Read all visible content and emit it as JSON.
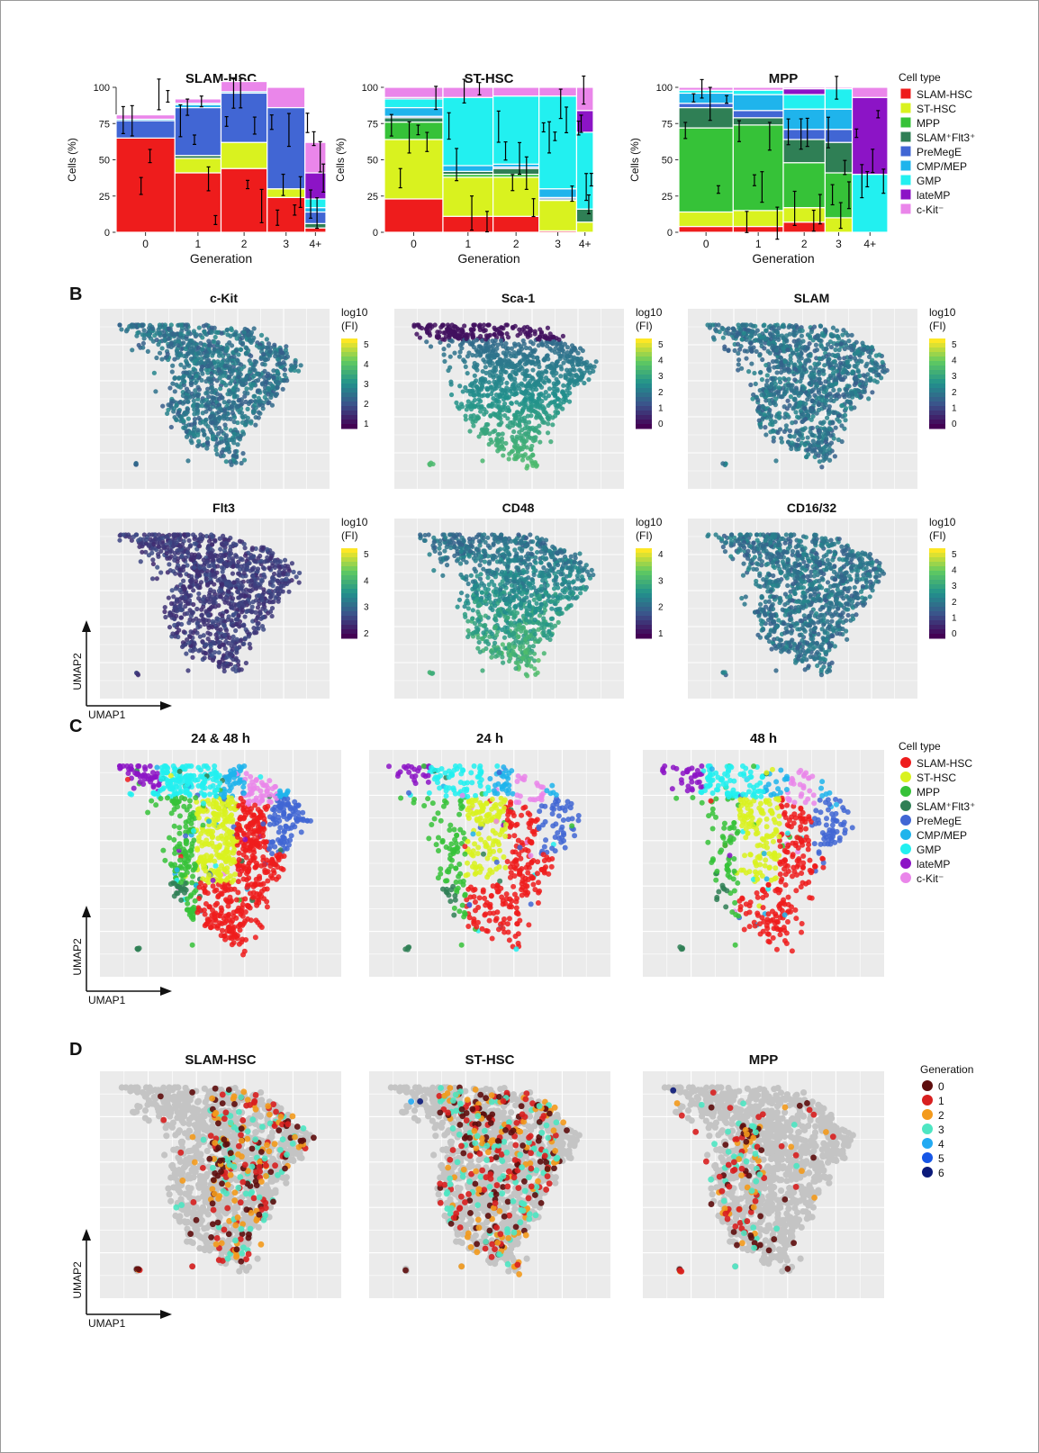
{
  "panel_labels": [
    "B",
    "C",
    "D"
  ],
  "colors": {
    "SLAM-HSC": "#ee1c1c",
    "ST-HSC": "#d9f21f",
    "MPP": "#36c238",
    "SLAM+Flt3+": "#2f7f55",
    "PreMegE": "#4166d4",
    "CMP/MEP": "#1fb4ec",
    "GMP": "#22f0f0",
    "lateMP": "#8c14c6",
    "c-Kit-": "#ea86ea",
    "gen0": "#5e0d0d",
    "gen1": "#d81f1f",
    "gen2": "#f39a1c",
    "gen3": "#4ee6c2",
    "gen4": "#22aaf2",
    "gen5": "#1656e6",
    "gen6": "#0b1a7a",
    "grey": "#c4c4c4",
    "panel_bg": "#ebebeb"
  },
  "legend_celltype": {
    "title": "Cell type",
    "items": [
      "SLAM-HSC",
      "ST-HSC",
      "MPP",
      "SLAM⁺Flt3⁺",
      "PreMegE",
      "CMP/MEP",
      "GMP",
      "lateMP",
      "c-Kit⁻"
    ],
    "keys": [
      "SLAM-HSC",
      "ST-HSC",
      "MPP",
      "SLAM+Flt3+",
      "PreMegE",
      "CMP/MEP",
      "GMP",
      "lateMP",
      "c-Kit-"
    ]
  },
  "legend_generation": {
    "title": "Generation",
    "items": [
      "0",
      "1",
      "2",
      "3",
      "4",
      "5",
      "6"
    ]
  },
  "axes_text": {
    "umap1": "UMAP1",
    "umap2": "UMAP2",
    "log_label_1": "log10",
    "log_label_2": "(FI)"
  },
  "chart_data": [
    {
      "type": "bar",
      "stacked": "mosaic",
      "title": "SLAM-HSC",
      "xlabel": "Generation",
      "ylabel": "Cells (%)",
      "ylim": [
        0,
        100
      ],
      "yticks": [
        "0",
        "25",
        "50",
        "75",
        "100"
      ],
      "categories": [
        "0",
        "1",
        "2",
        "3",
        "4+"
      ],
      "series": [
        {
          "name": "SLAM-HSC",
          "values": [
            65,
            41,
            44,
            24,
            3
          ]
        },
        {
          "name": "ST-HSC",
          "values": [
            0,
            10,
            18,
            6,
            0
          ]
        },
        {
          "name": "MPP",
          "values": [
            0,
            0,
            0,
            0,
            0
          ]
        },
        {
          "name": "SLAM⁺Flt3⁺",
          "values": [
            0,
            2,
            0,
            0,
            3
          ]
        },
        {
          "name": "PreMegE",
          "values": [
            12,
            33,
            34,
            56,
            8
          ]
        },
        {
          "name": "CMP/MEP",
          "values": [
            1,
            2,
            1,
            0,
            3
          ]
        },
        {
          "name": "GMP",
          "values": [
            0,
            1,
            0,
            0,
            6
          ]
        },
        {
          "name": "lateMP",
          "values": [
            0,
            0,
            0,
            0,
            18
          ]
        },
        {
          "name": "c-Kit⁻",
          "values": [
            3,
            3,
            7,
            14,
            21
          ]
        }
      ]
    },
    {
      "type": "bar",
      "stacked": "mosaic",
      "title": "ST-HSC",
      "xlabel": "Generation",
      "ylabel": "Cells (%)",
      "ylim": [
        0,
        100
      ],
      "yticks": [
        "0",
        "25",
        "50",
        "75",
        "100"
      ],
      "categories": [
        "0",
        "1",
        "2",
        "3",
        "4+"
      ],
      "series": [
        {
          "name": "SLAM-HSC",
          "values": [
            23,
            11,
            11,
            1,
            0
          ]
        },
        {
          "name": "ST-HSC",
          "values": [
            41,
            27,
            27,
            21,
            7
          ]
        },
        {
          "name": "MPP",
          "values": [
            12,
            2,
            2,
            0,
            0
          ]
        },
        {
          "name": "SLAM⁺Flt3⁺",
          "values": [
            3,
            2,
            4,
            1,
            9
          ]
        },
        {
          "name": "PreMegE",
          "values": [
            1,
            0,
            1,
            1,
            0
          ]
        },
        {
          "name": "CMP/MEP",
          "values": [
            6,
            4,
            2,
            6,
            0
          ]
        },
        {
          "name": "GMP",
          "values": [
            6,
            47,
            47,
            64,
            53
          ]
        },
        {
          "name": "lateMP",
          "values": [
            1,
            0,
            0,
            0,
            15
          ]
        },
        {
          "name": "c-Kit⁻",
          "values": [
            7,
            7,
            6,
            6,
            16
          ]
        }
      ]
    },
    {
      "type": "bar",
      "stacked": "mosaic",
      "title": "MPP",
      "xlabel": "Generation",
      "ylabel": "Cells (%)",
      "ylim": [
        0,
        100
      ],
      "yticks": [
        "0",
        "25",
        "50",
        "75",
        "100"
      ],
      "categories": [
        "0",
        "1",
        "2",
        "3",
        "4+"
      ],
      "series": [
        {
          "name": "SLAM-HSC",
          "values": [
            4,
            4,
            7,
            0,
            0
          ]
        },
        {
          "name": "ST-HSC",
          "values": [
            10,
            11,
            10,
            10,
            0
          ]
        },
        {
          "name": "MPP",
          "values": [
            58,
            59,
            31,
            31,
            0
          ]
        },
        {
          "name": "SLAM⁺Flt3⁺",
          "values": [
            14,
            5,
            16,
            21,
            0
          ]
        },
        {
          "name": "PreMegE",
          "values": [
            3,
            5,
            7,
            9,
            0
          ]
        },
        {
          "name": "CMP/MEP",
          "values": [
            7,
            11,
            14,
            14,
            0
          ]
        },
        {
          "name": "GMP",
          "values": [
            2,
            3,
            10,
            14,
            40
          ]
        },
        {
          "name": "lateMP",
          "values": [
            0,
            0,
            4,
            0,
            53
          ]
        },
        {
          "name": "c-Kit⁻",
          "values": [
            2,
            2,
            1,
            1,
            7
          ]
        }
      ]
    }
  ],
  "marker_panels": [
    {
      "title": "c-Kit",
      "ticks": [
        "5",
        "4",
        "3",
        "2",
        "1"
      ]
    },
    {
      "title": "Sca-1",
      "ticks": [
        "5",
        "4",
        "3",
        "2",
        "1",
        "0"
      ]
    },
    {
      "title": "SLAM",
      "ticks": [
        "5",
        "4",
        "3",
        "2",
        "1",
        "0"
      ]
    },
    {
      "title": "Flt3",
      "ticks": [
        "5",
        "4",
        "3",
        "2"
      ]
    },
    {
      "title": "CD48",
      "ticks": [
        "4",
        "3",
        "2",
        "1"
      ]
    },
    {
      "title": "CD16/32",
      "ticks": [
        "5",
        "4",
        "3",
        "2",
        "1",
        "0"
      ]
    }
  ],
  "timepoint_panels": [
    {
      "title": "24 & 48 h"
    },
    {
      "title": "24 h"
    },
    {
      "title": "48 h"
    }
  ],
  "generation_panels": [
    {
      "title": "SLAM-HSC"
    },
    {
      "title": "ST-HSC"
    },
    {
      "title": "MPP"
    }
  ]
}
